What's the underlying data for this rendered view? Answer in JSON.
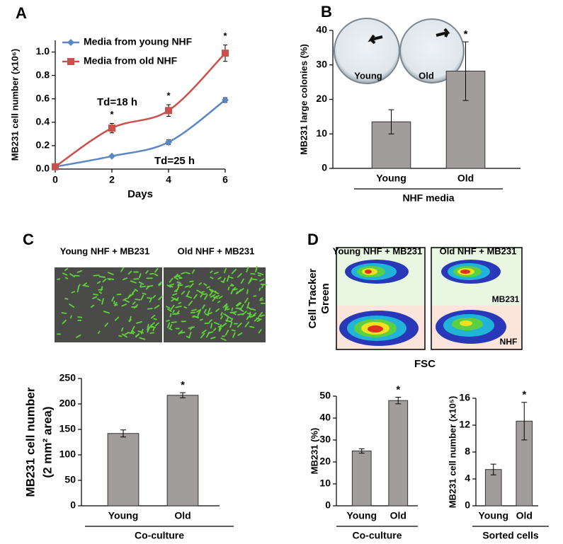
{
  "chart_data": [
    {
      "type": "line",
      "panel_label": "A",
      "xlabel": "Days",
      "ylabel": "MB231 cell number (x10⁶)",
      "x": [
        0,
        2,
        4,
        6
      ],
      "xlim": [
        0,
        6
      ],
      "xticks": [
        0,
        2,
        4,
        6
      ],
      "ylim": [
        0,
        1.1
      ],
      "yticks": [
        {
          "value": 0,
          "label": "0.0"
        },
        0.2,
        0.4,
        0.6,
        0.8,
        {
          "value": 1,
          "label": "1.0"
        }
      ],
      "series": [
        {
          "name": "Media from young NHF",
          "color": "#5b87c4",
          "marker": "diamond",
          "values": [
            0.02,
            0.11,
            0.23,
            0.59
          ],
          "errors": [
            0.01,
            0.01,
            0.02,
            0.02
          ]
        },
        {
          "name": "Media from old NHF",
          "color": "#c9504c",
          "marker": "square",
          "values": [
            0.02,
            0.35,
            0.5,
            0.99
          ],
          "errors": [
            0.01,
            0.04,
            0.05,
            0.07
          ]
        }
      ],
      "annotations": [
        {
          "text": "*",
          "x": 2
        },
        {
          "text": "*",
          "x": 4
        },
        {
          "text": "*",
          "x": 6
        },
        {
          "text": "Td=18 h"
        },
        {
          "text": "Td=25 h"
        }
      ]
    },
    {
      "type": "bar",
      "panel_label": "B",
      "xlabel": "NHF media",
      "ylabel": "MB231 large colonies (%)",
      "image_labels": [
        "Young",
        "Old"
      ],
      "categories": [
        "Young",
        "Old"
      ],
      "values": [
        13.5,
        28.2
      ],
      "errors": [
        3.5,
        8.5
      ],
      "color": "#a09d9c",
      "ylim": [
        0,
        40
      ],
      "yticks": [
        0,
        10,
        20,
        30,
        40
      ],
      "annotations": [
        {
          "text": "*",
          "category": "Old"
        }
      ]
    },
    {
      "type": "bar",
      "panel_label": "C",
      "xlabel": "Co-culture",
      "ylabel": [
        "MB231 cell number",
        "(2 mm² area)"
      ],
      "image_labels": [
        "Young NHF + MB231",
        "Old NHF + MB231"
      ],
      "categories": [
        "Young",
        "Old"
      ],
      "values": [
        142,
        217
      ],
      "errors": [
        7,
        5
      ],
      "color": "#a09d9c",
      "ylim": [
        0,
        250
      ],
      "yticks": [
        0,
        50,
        100,
        150,
        200,
        250
      ],
      "annotations": [
        {
          "text": "*",
          "category": "Old"
        }
      ]
    },
    {
      "type": "bar",
      "panel_label": "D",
      "xlabel": "Co-culture",
      "ylabel": "MB231 (%)",
      "image_labels": [
        "Young NHF + MB231",
        "Old NHF + MB231"
      ],
      "flow_labels": {
        "y": [
          "Cell Tracker",
          "Green"
        ],
        "x": "FSC",
        "upper": "MB231",
        "lower": "NHF"
      },
      "categories": [
        "Young",
        "Old"
      ],
      "values": [
        25,
        48
      ],
      "errors": [
        1,
        1.5
      ],
      "color": "#a09d9c",
      "ylim": [
        0,
        50
      ],
      "yticks": [
        0,
        10,
        20,
        30,
        40,
        50
      ],
      "annotations": [
        {
          "text": "*",
          "category": "Old"
        }
      ]
    },
    {
      "type": "bar",
      "xlabel": "Sorted cells",
      "ylabel": "MB231 cell number (x10⁵)",
      "categories": [
        "Young",
        "Old"
      ],
      "values": [
        5.4,
        12.6
      ],
      "errors": [
        0.8,
        2.8
      ],
      "color": "#a09d9c",
      "ylim": [
        0,
        16
      ],
      "yticks": [
        0,
        4,
        8,
        12,
        16
      ],
      "annotations": [
        {
          "text": "*",
          "category": "Old"
        }
      ]
    }
  ]
}
